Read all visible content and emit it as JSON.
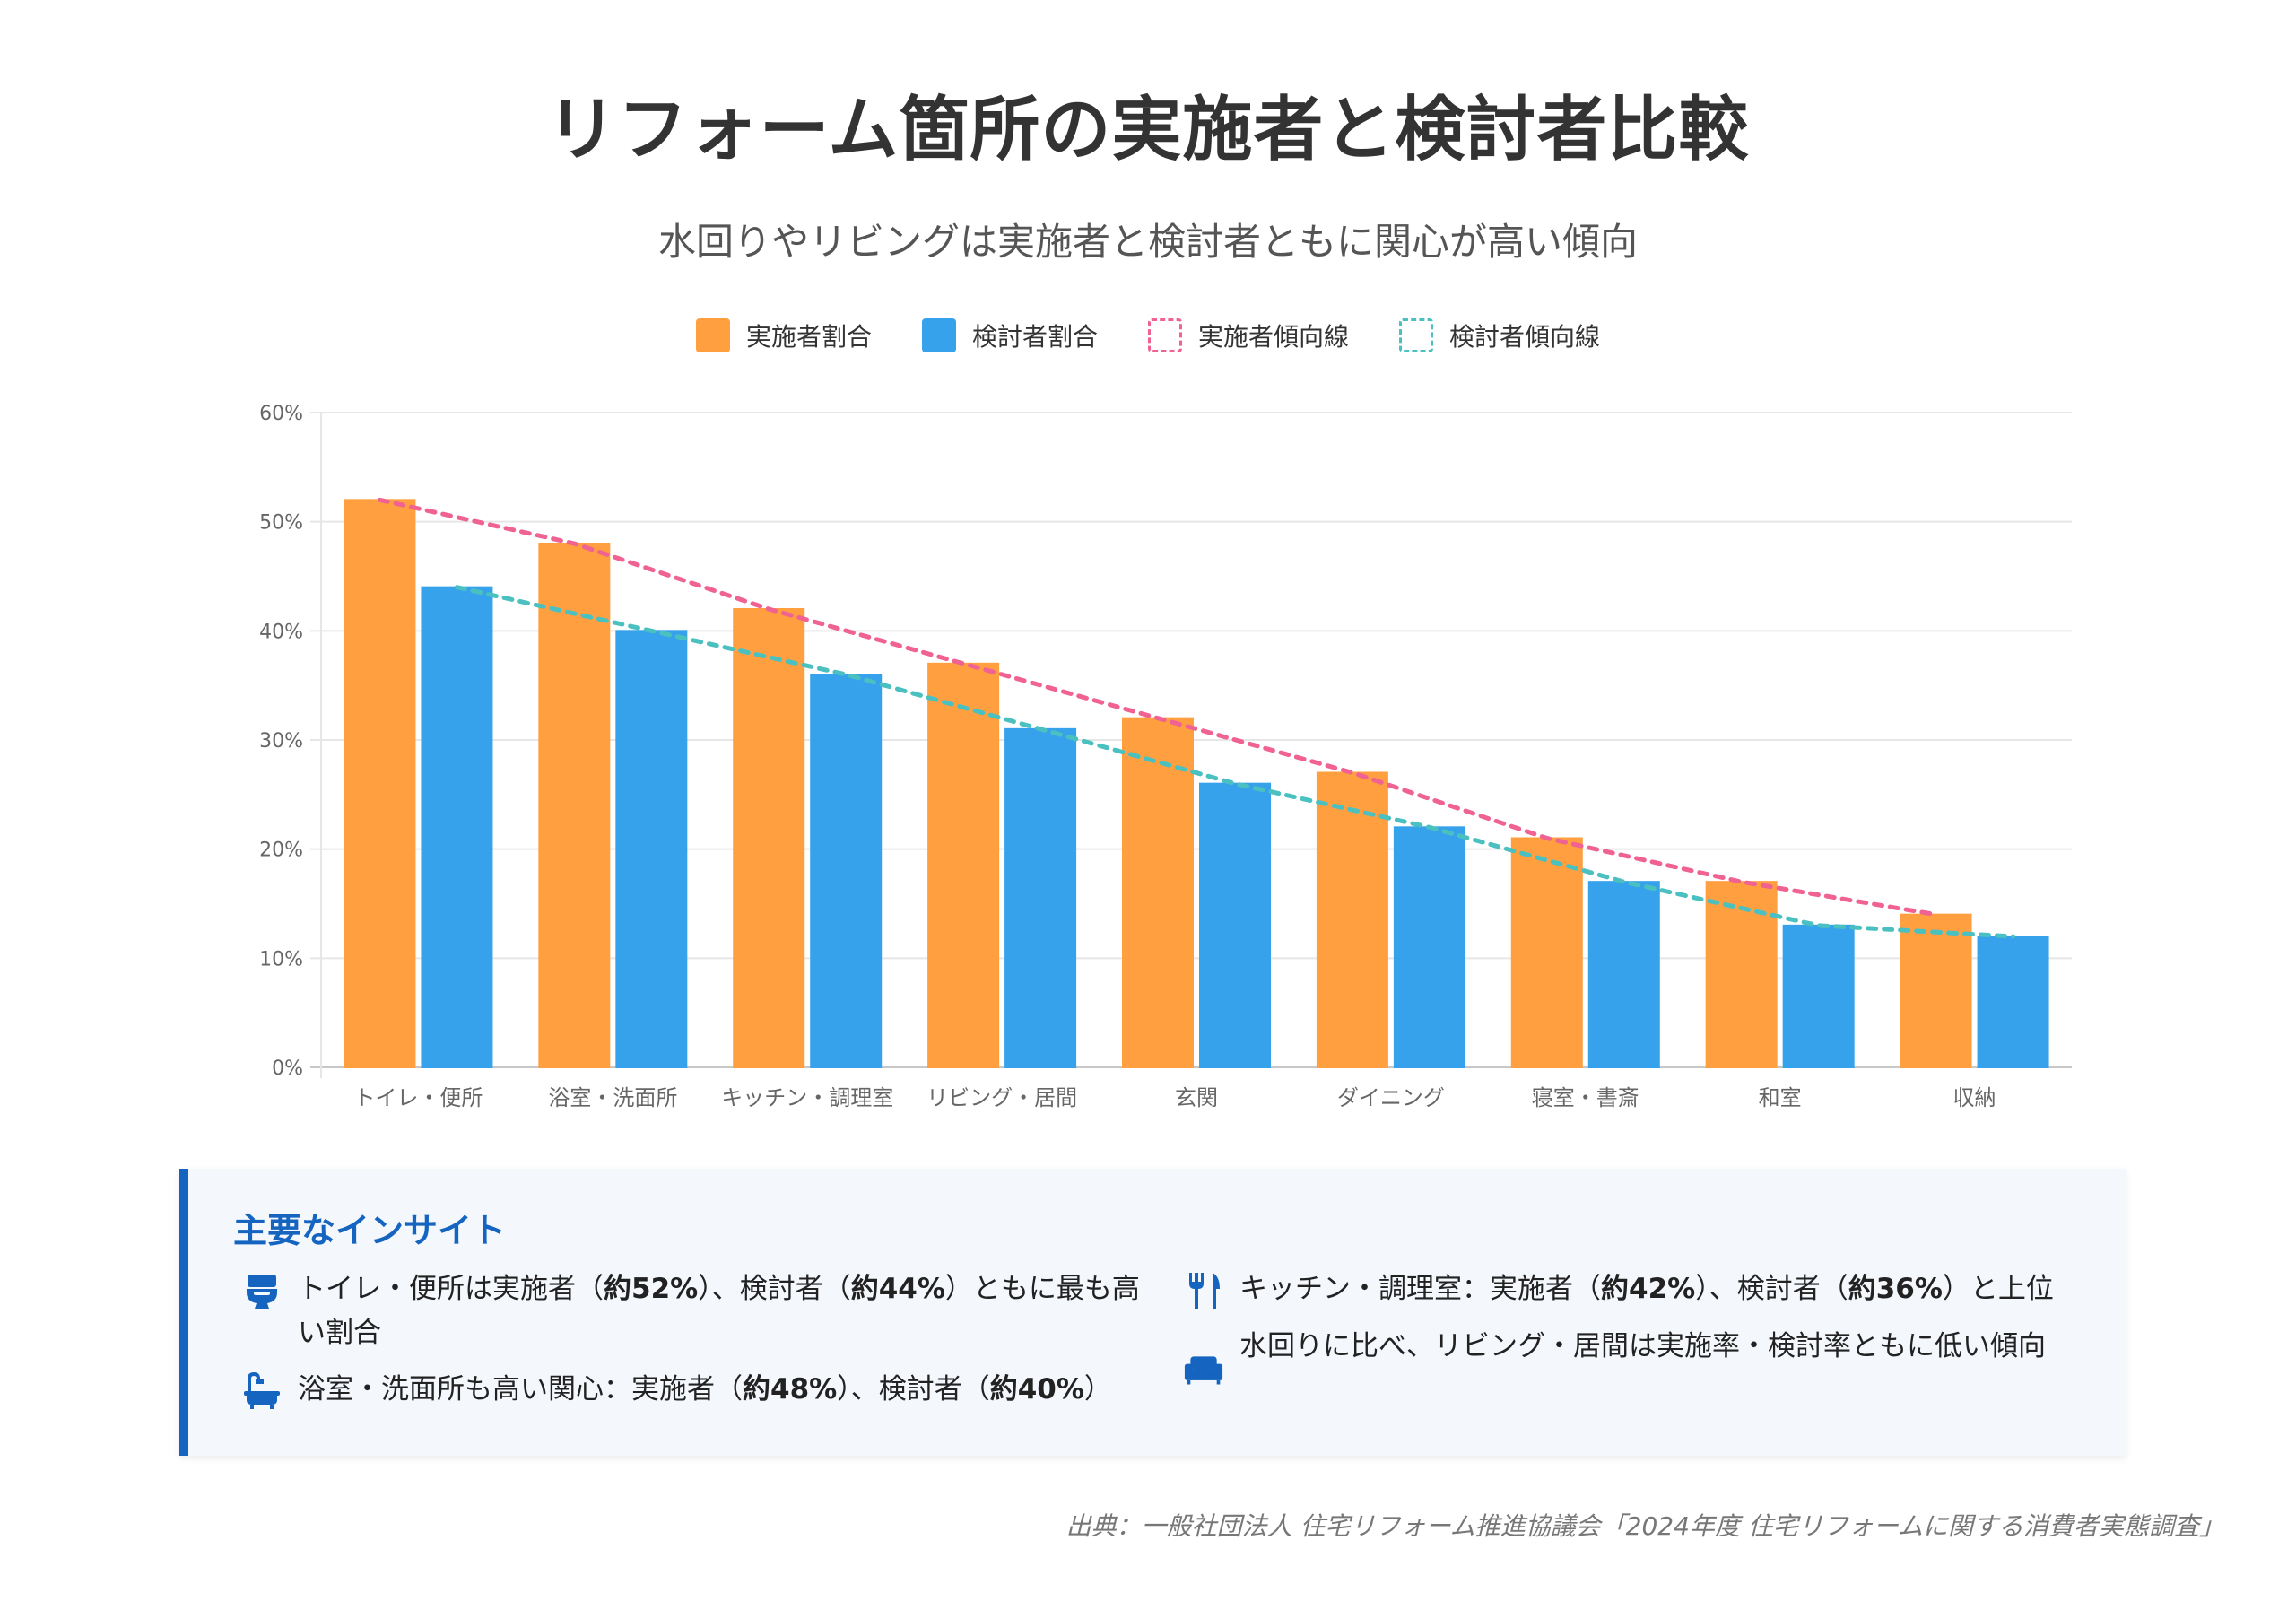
{
  "title": "リフォーム箇所の実施者と検討者比較",
  "subtitle": "水回りやリビングは実施者と検討者ともに関心が高い傾向",
  "legend": [
    {
      "label": "実施者割合",
      "style": "solid-orange"
    },
    {
      "label": "検討者割合",
      "style": "solid-blue"
    },
    {
      "label": "実施者傾向線",
      "style": "dash-pink"
    },
    {
      "label": "検討者傾向線",
      "style": "dash-teal"
    }
  ],
  "chart_data": {
    "type": "bar",
    "categories": [
      "トイレ・便所",
      "浴室・洗面所",
      "キッチン・調理室",
      "リビング・居間",
      "玄関",
      "ダイニング",
      "寝室・書斎",
      "和室",
      "収納"
    ],
    "series": [
      {
        "name": "実施者割合",
        "type": "bar",
        "color": "#ff9f40",
        "values": [
          52,
          48,
          42,
          37,
          32,
          27,
          21,
          17,
          14
        ]
      },
      {
        "name": "検討者割合",
        "type": "bar",
        "color": "#36a2eb",
        "values": [
          44,
          40,
          36,
          31,
          26,
          22,
          17,
          13,
          12
        ]
      },
      {
        "name": "実施者傾向線",
        "type": "line",
        "style": "dashed",
        "color": "#f06292",
        "values": [
          52,
          48,
          42,
          37,
          32,
          27,
          21,
          17,
          14
        ]
      },
      {
        "name": "検討者傾向線",
        "type": "line",
        "style": "dashed",
        "color": "#4bc0c0",
        "values": [
          44,
          40,
          36,
          31,
          26,
          22,
          17,
          13,
          12
        ]
      }
    ],
    "y_ticks": [
      "0%",
      "10%",
      "20%",
      "30%",
      "40%",
      "50%",
      "60%"
    ],
    "ylim": [
      0,
      60
    ],
    "grid": true,
    "legend_position": "top-center"
  },
  "insights": {
    "title": "主要なインサイト",
    "items": [
      {
        "icon": "toilet-icon",
        "pre": "トイレ・便所は実施者（",
        "b1": "約52%",
        "mid": "）、検討者（",
        "b2": "約44%",
        "post": "）ともに最も高い割合"
      },
      {
        "icon": "bath-icon",
        "pre": "浴室・洗面所も高い関心：実施者（",
        "b1": "約48%",
        "mid": "）、検討者（",
        "b2": "約40%",
        "post": "）"
      },
      {
        "icon": "utensils-icon",
        "pre": "キッチン・調理室：実施者（",
        "b1": "約42%",
        "mid": "）、検討者（",
        "b2": "約36%",
        "post": "）と上位"
      },
      {
        "icon": "couch-icon",
        "text": "水回りに比べ、リビング・居間は実施率・検討率ともに低い傾向"
      }
    ]
  },
  "source": "出典：一般社団法人 住宅リフォーム推進協議会「2024年度 住宅リフォームに関する消費者実態調査」"
}
